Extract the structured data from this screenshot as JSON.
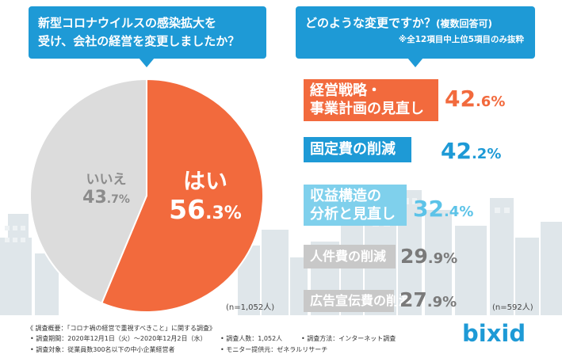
{
  "left_panel": {
    "question_line1": "新型コロナウイルスの感染拡大を",
    "question_line2": "受け、会社の経営を変更しましたか？",
    "n_label": "(n=1,052人)"
  },
  "right_panel": {
    "question_main": "どのような変更ですか？",
    "question_paren": "(複数回答可)",
    "question_note": "※全12項目中上位5項目のみ抜粋",
    "n_label": "(n=592人)"
  },
  "chart_data": [
    {
      "type": "pie",
      "labels": [
        "はい",
        "いいえ"
      ],
      "values": [
        56.3,
        43.7
      ],
      "value_text": [
        {
          "int": "56",
          "dec": ".3%"
        },
        {
          "int": "43",
          "dec": ".7%"
        }
      ],
      "colors": [
        "#f26a3d",
        "#dcdcdc"
      ]
    },
    {
      "type": "bar",
      "categories": [
        "経営戦略・事業計画の見直し",
        "固定費の削減",
        "収益構造の分析と見直し",
        "人件費の削減",
        "広告宣伝費の削減"
      ],
      "category_lines": [
        [
          "経営戦略・",
          "事業計画の見直し"
        ],
        [
          "固定費の削減"
        ],
        [
          "収益構造の",
          "分析と見直し"
        ],
        [
          "人件費の削減"
        ],
        [
          "広告宣伝費の削減"
        ]
      ],
      "values": [
        42.6,
        42.2,
        32.4,
        29.9,
        27.9
      ],
      "value_text": [
        {
          "int": "42",
          "dec": ".6%"
        },
        {
          "int": "42",
          "dec": ".2%"
        },
        {
          "int": "32",
          "dec": ".4%"
        },
        {
          "int": "29",
          "dec": ".9%"
        },
        {
          "int": "27",
          "dec": ".9%"
        }
      ],
      "colors": [
        "#f26a3d",
        "#1e9ad6",
        "#7fd0ec",
        "#c8c8c8",
        "#c8c8c8"
      ],
      "value_colors": [
        "#f26a3d",
        "#1e9ad6",
        "#5cc3e8",
        "#7a7a7a",
        "#7a7a7a"
      ]
    }
  ],
  "footer": {
    "title": "《 調査概要：「コロナ禍の経営で重視すべきこと」に関する調査》",
    "period": "• 調査期間：2020年12月1日（火）〜2020年12月2日（水）",
    "count": "• 調査人数：1,052人",
    "method": "• 調査方法：インターネット調査",
    "target": "• 調査対象：従業員数300名以下の中小企業経営者",
    "provider": "• モニター提供元：ゼネラルリサーチ"
  },
  "brand": {
    "logo_text": "bixid",
    "accent": "#1e9ad6",
    "orange": "#f26a3d"
  }
}
